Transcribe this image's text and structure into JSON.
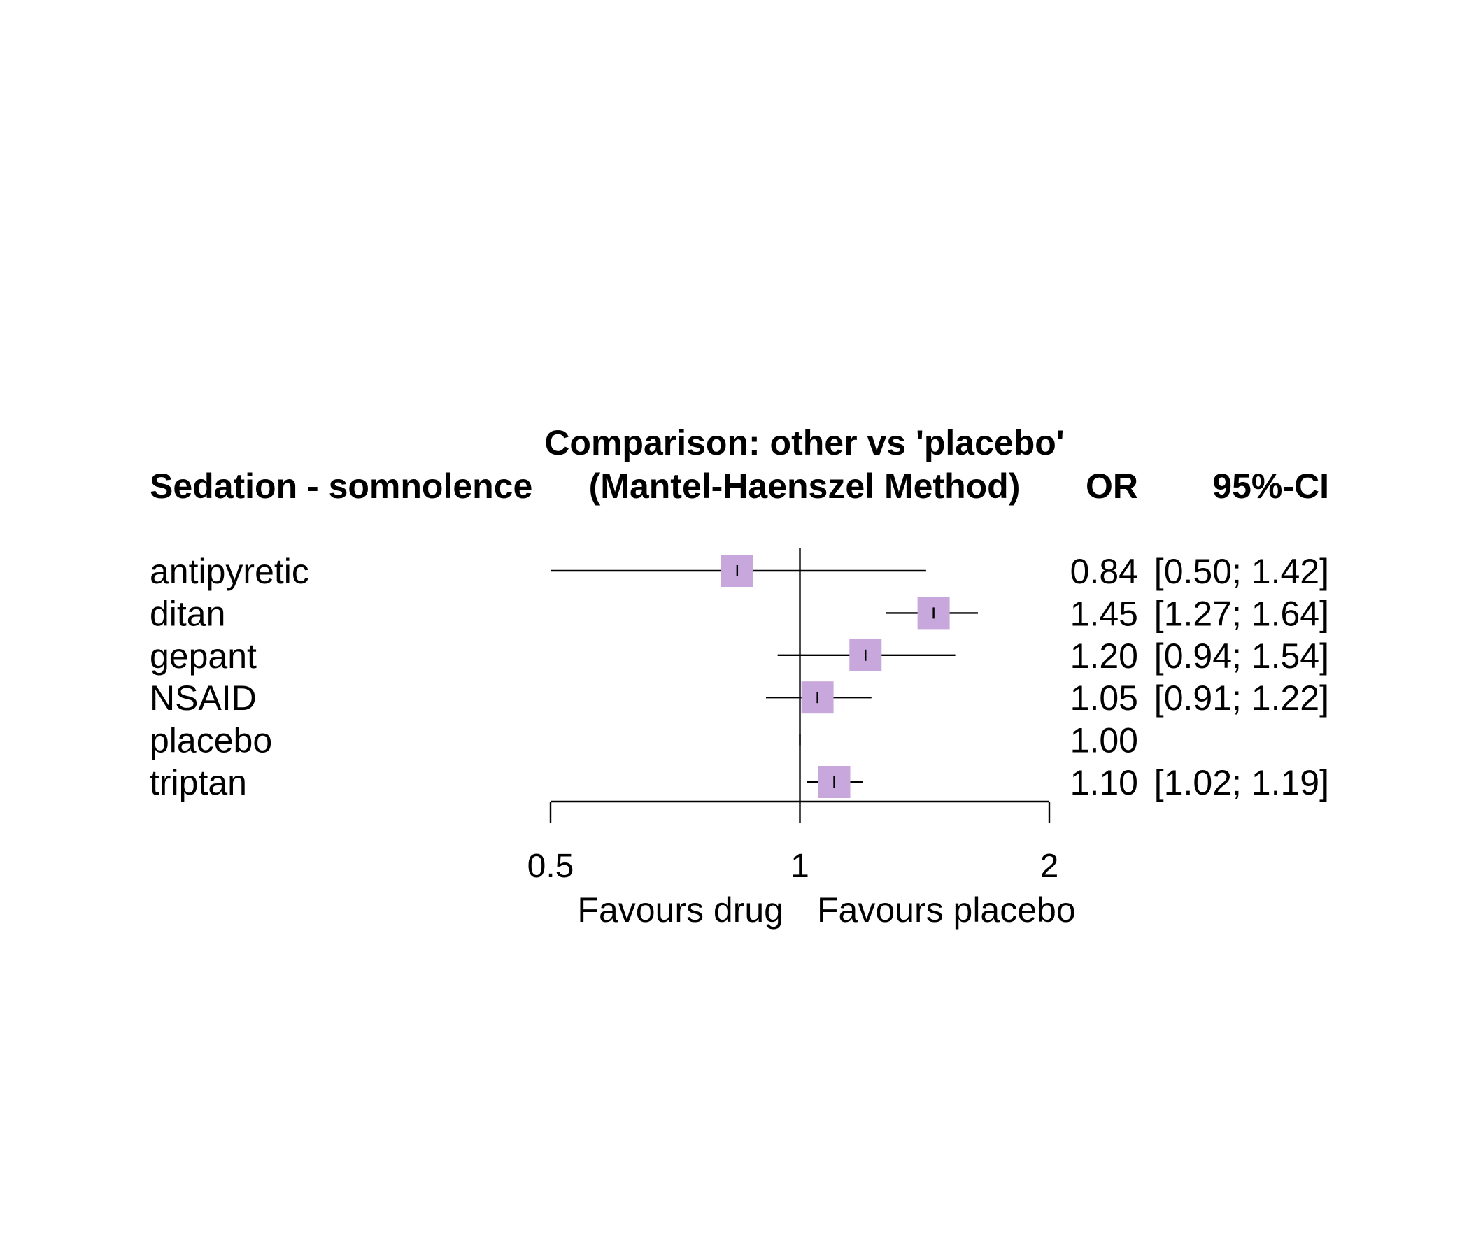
{
  "chart_data": {
    "type": "forest",
    "title_line1": "Comparison: other vs 'placebo'",
    "title_line2": "(Mantel-Haenszel Method)",
    "column_headers": {
      "label": "Sedation - somnolence",
      "estimate": "OR",
      "ci": "95%-CI"
    },
    "scale": "log",
    "xlim": [
      0.5,
      2
    ],
    "reference_value": 1,
    "ticks": [
      {
        "value": 0.5,
        "label": "0.5"
      },
      {
        "value": 1,
        "label": "1"
      },
      {
        "value": 2,
        "label": "2"
      }
    ],
    "favours_left": "Favours drug",
    "favours_right": "Favours placebo",
    "marker_color": "#c8a8dc",
    "rows": [
      {
        "label": "antipyretic",
        "or": 0.84,
        "lower": 0.5,
        "upper": 1.42,
        "or_text": "0.84",
        "ci_text": "[0.50; 1.42]"
      },
      {
        "label": "ditan",
        "or": 1.45,
        "lower": 1.27,
        "upper": 1.64,
        "or_text": "1.45",
        "ci_text": "[1.27; 1.64]"
      },
      {
        "label": "gepant",
        "or": 1.2,
        "lower": 0.94,
        "upper": 1.54,
        "or_text": "1.20",
        "ci_text": "[0.94; 1.54]"
      },
      {
        "label": "NSAID",
        "or": 1.05,
        "lower": 0.91,
        "upper": 1.22,
        "or_text": "1.05",
        "ci_text": "[0.91; 1.22]"
      },
      {
        "label": "placebo",
        "or": 1.0,
        "lower": null,
        "upper": null,
        "or_text": "1.00",
        "ci_text": ""
      },
      {
        "label": "triptan",
        "or": 1.1,
        "lower": 1.02,
        "upper": 1.19,
        "or_text": "1.10",
        "ci_text": "[1.02; 1.19]"
      }
    ]
  }
}
